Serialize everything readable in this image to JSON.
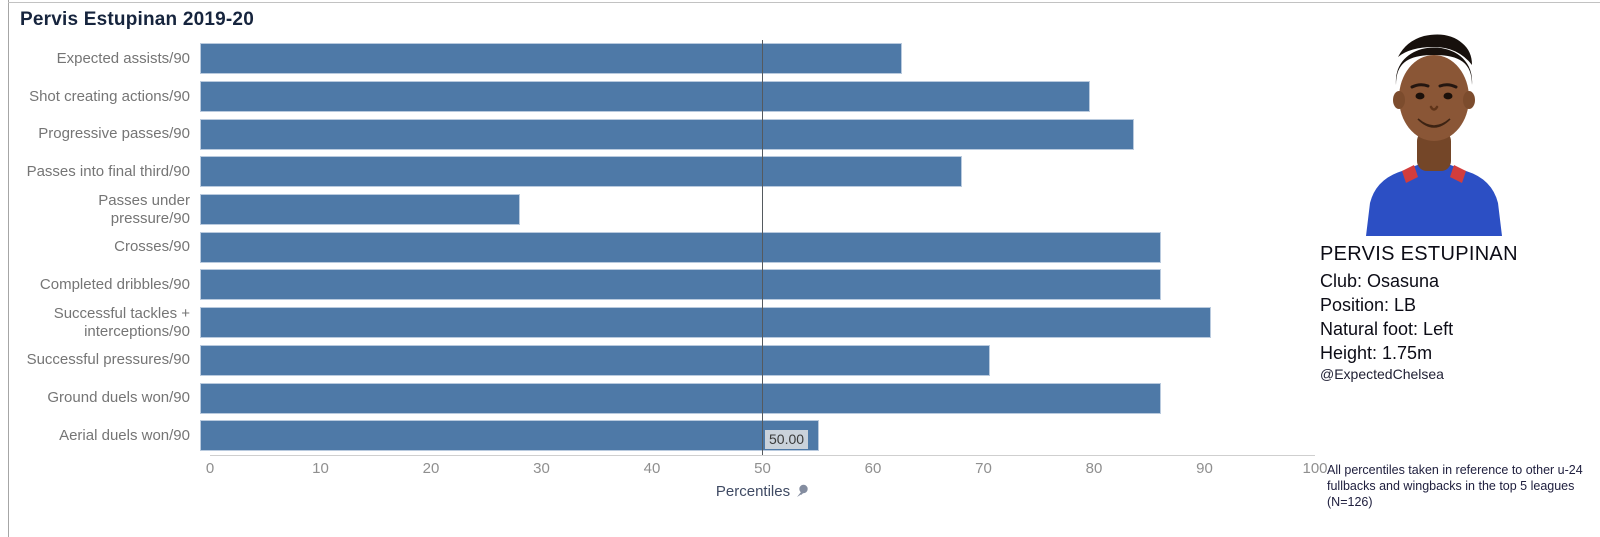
{
  "title": "Pervis Estupinan 2019-20",
  "chart_data": {
    "type": "bar",
    "orientation": "horizontal",
    "title": "Pervis Estupinan 2019-20",
    "categories": [
      "Expected assists/90",
      "Shot creating actions/90",
      "Progressive passes/90",
      "Passes into final third/90",
      "Passes under\npressure/90",
      "Crosses/90",
      "Completed dribbles/90",
      "Successful tackles +\ninterceptions/90",
      "Successful pressures/90",
      "Ground duels won/90",
      "Aerial duels won/90"
    ],
    "values": [
      63.5,
      80.5,
      84.5,
      69,
      29,
      87,
      87,
      91.5,
      71.5,
      87,
      56
    ],
    "xlabel": "Percentiles",
    "xlim": [
      0,
      100
    ],
    "xticks": [
      0,
      10,
      20,
      30,
      40,
      50,
      60,
      70,
      80,
      90,
      100
    ],
    "grid": "off",
    "legend": "none",
    "bar_color": "#4e79a7",
    "reference_line": {
      "x": 50,
      "label": "50.00"
    }
  },
  "player": {
    "name": "PERVIS ESTUPINAN",
    "club": "Club: Osasuna",
    "position": "Position: LB",
    "foot": "Natural foot: Left",
    "height": "Height: 1.75m",
    "handle": "@ExpectedChelsea"
  },
  "footnote": "All percentiles taken in reference to other u-24 fullbacks and wingbacks in the top 5 leagues (N=126)",
  "icons": {
    "pin": "pushpin-icon"
  }
}
